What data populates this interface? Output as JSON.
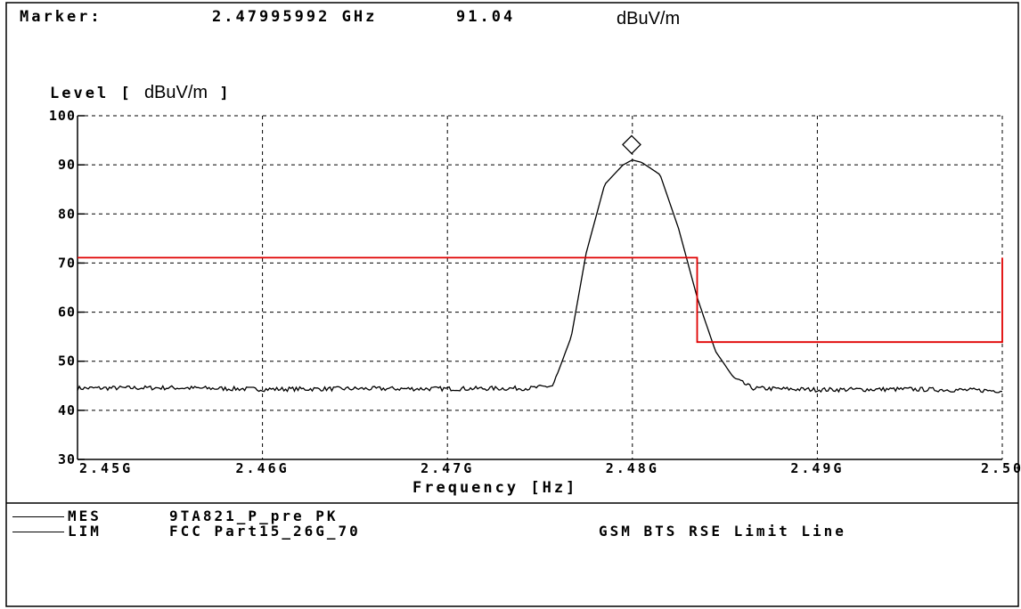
{
  "header": {
    "marker_label": "Marker:",
    "marker_freq": "2.47995992",
    "marker_freq_unit": "GHz",
    "marker_level": "91.04",
    "marker_level_unit": "dBuV/m"
  },
  "ylabel": {
    "prefix": "Level",
    "open": "[",
    "unit": "dBuV/m",
    "close": "]"
  },
  "chart_data": {
    "type": "line",
    "xlabel": "Frequency [Hz]",
    "ylabel": "Level [dBuV/m]",
    "xlim": [
      2.45,
      2.5
    ],
    "ylim": [
      30,
      100
    ],
    "yticks": [
      30,
      40,
      50,
      60,
      70,
      80,
      90,
      100
    ],
    "ytick_labels": [
      "30",
      "40",
      "50",
      "60",
      "70",
      "80",
      "90",
      "100"
    ],
    "xticks": [
      2.45,
      2.46,
      2.47,
      2.48,
      2.49,
      2.5
    ],
    "xtick_labels": [
      "2.45G",
      "2.46G",
      "2.47G",
      "2.48G",
      "2.49G",
      "2.50"
    ],
    "grid": true,
    "colors": {
      "measurement": "#000000",
      "limit": "#e00000",
      "grid": "#000000"
    },
    "marker": {
      "x": 2.47996,
      "y": 91.04,
      "symbol": "diamond"
    },
    "series": [
      {
        "id": "MES",
        "x": [
          2.45,
          2.455,
          2.46,
          2.465,
          2.47,
          2.4745,
          2.4757,
          2.4767,
          2.4775,
          2.4785,
          2.4795,
          2.48,
          2.4805,
          2.4815,
          2.4825,
          2.4835,
          2.4845,
          2.4855,
          2.4865,
          2.49,
          2.495,
          2.5
        ],
        "y": [
          44.5,
          44.6,
          44.3,
          44.4,
          44.4,
          44.5,
          45.0,
          55.0,
          72.0,
          86.0,
          90.0,
          91.0,
          90.5,
          88.0,
          77.0,
          63.0,
          52.0,
          46.5,
          44.5,
          44.2,
          44.3,
          44.0
        ]
      },
      {
        "id": "LIM",
        "x": [
          2.45,
          2.4835,
          2.4835,
          2.5,
          2.5
        ],
        "y": [
          71.1,
          71.1,
          53.9,
          53.9,
          71.1
        ]
      }
    ]
  },
  "legend": [
    {
      "code": "MES",
      "name": "9TA821_P_pre PK",
      "desc": ""
    },
    {
      "code": "LIM",
      "name": "FCC Part15_26G_70",
      "desc": "GSM BTS RSE Limit Line"
    }
  ]
}
